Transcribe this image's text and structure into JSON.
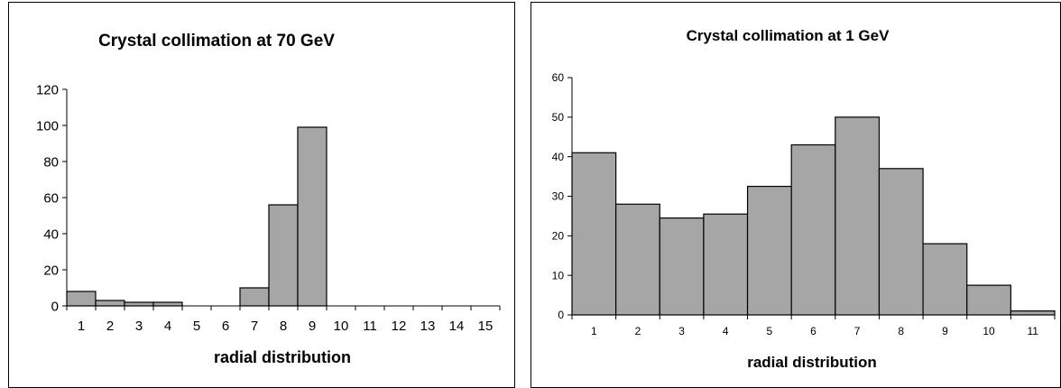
{
  "chart_data": [
    {
      "type": "bar",
      "title": "Crystal collimation at 70 GeV",
      "xlabel": "radial distribution",
      "ylabel": "",
      "ylim": [
        0,
        120
      ],
      "yticks": [
        0,
        20,
        40,
        60,
        80,
        100,
        120
      ],
      "categories": [
        "1",
        "2",
        "3",
        "4",
        "5",
        "6",
        "7",
        "8",
        "9",
        "10",
        "11",
        "12",
        "13",
        "14",
        "15"
      ],
      "values": [
        8,
        3,
        2,
        2,
        0,
        0,
        10,
        56,
        99,
        0,
        0,
        0,
        0,
        0,
        0
      ],
      "grid": false,
      "legend": "none",
      "bar_color": "#a6a6a6"
    },
    {
      "type": "bar",
      "title": "Crystal collimation at 1 GeV",
      "xlabel": "radial distribution",
      "ylabel": "",
      "ylim": [
        0,
        60
      ],
      "yticks": [
        0,
        10,
        20,
        30,
        40,
        50,
        60
      ],
      "categories": [
        "1",
        "2",
        "3",
        "4",
        "5",
        "6",
        "7",
        "8",
        "9",
        "10",
        "11"
      ],
      "values": [
        41,
        28,
        24.5,
        25.5,
        32.5,
        43,
        50,
        37,
        18,
        7.5,
        1
      ],
      "grid": false,
      "legend": "none",
      "bar_color": "#a6a6a6"
    }
  ]
}
